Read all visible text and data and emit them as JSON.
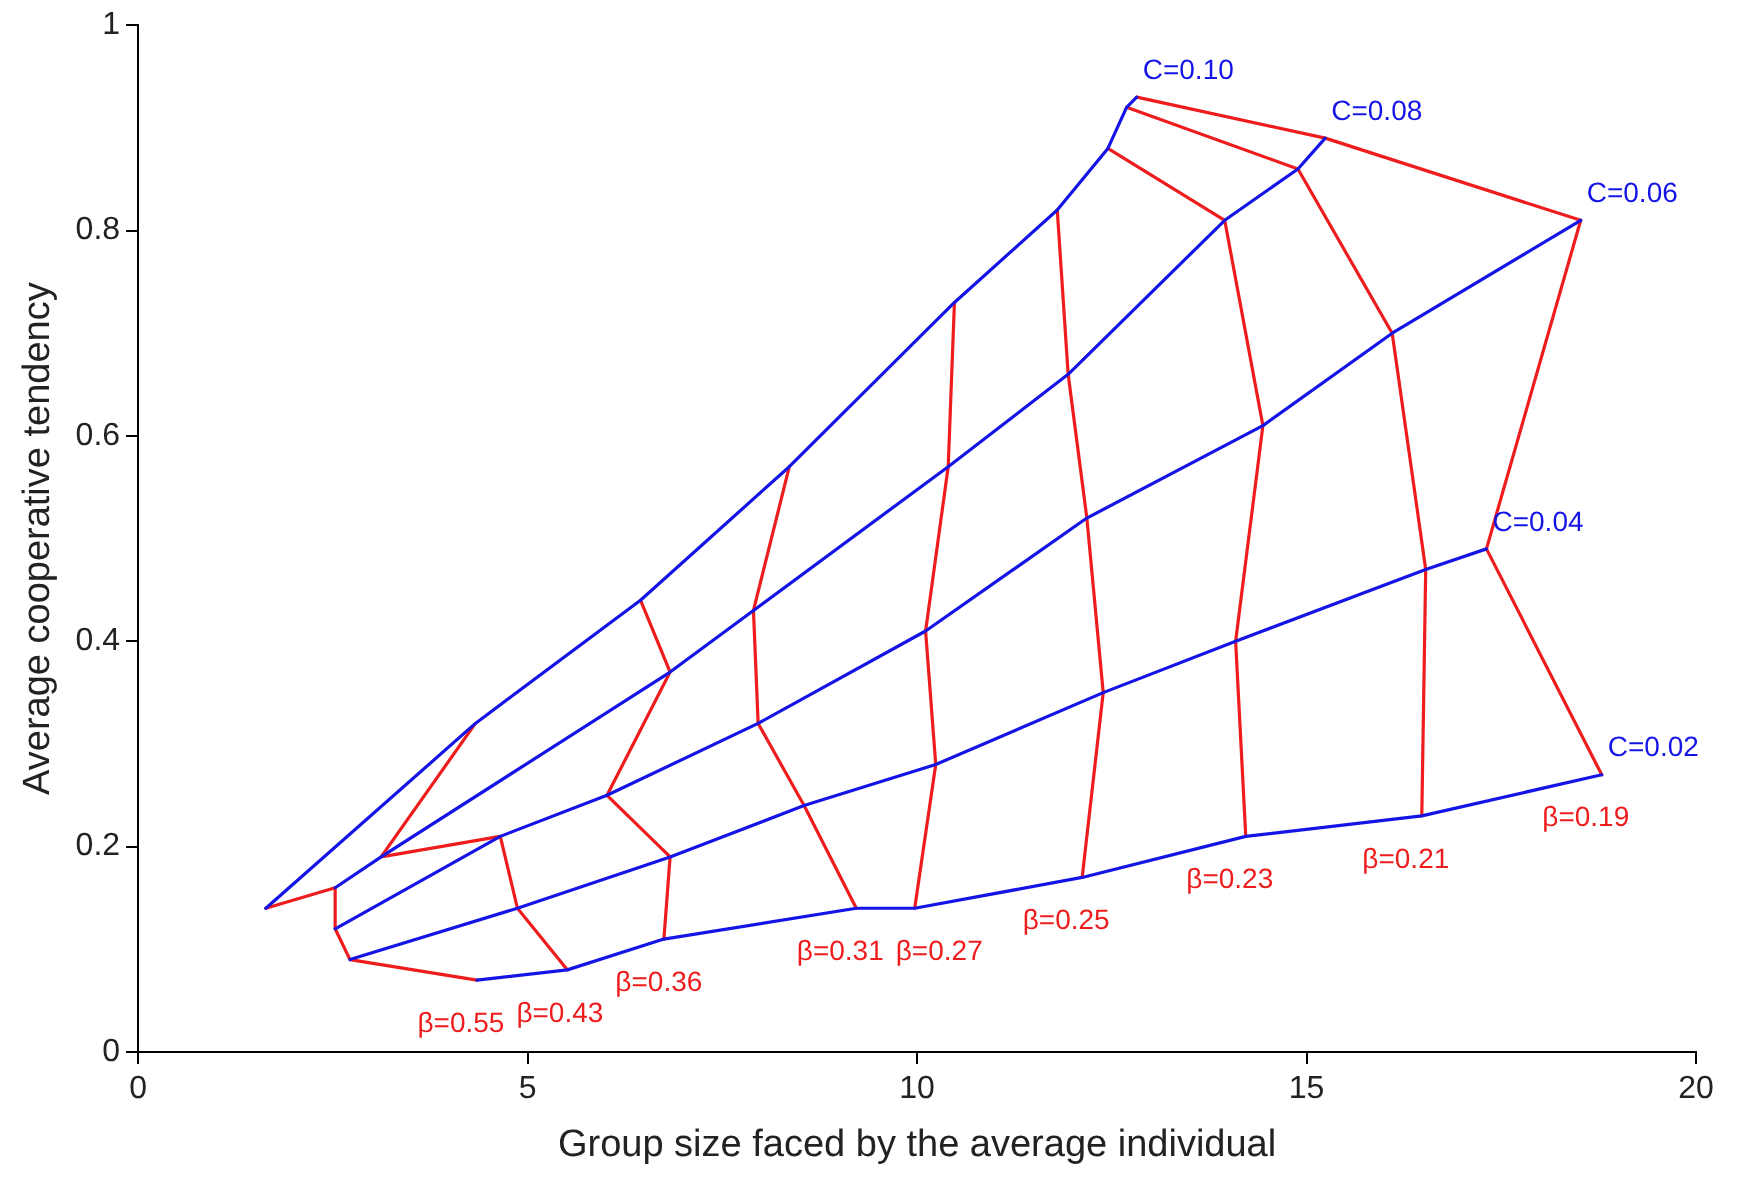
{
  "chart_data": {
    "type": "line",
    "xlabel": "Group size faced by the average individual",
    "ylabel": "Average cooperative tendency",
    "xlim": [
      0,
      20
    ],
    "ylim": [
      0,
      1
    ],
    "xticks": [
      0,
      5,
      10,
      15,
      20
    ],
    "yticks": [
      0,
      0.2,
      0.4,
      0.6,
      0.8,
      1
    ],
    "grid": false,
    "legend": false,
    "marker": "none",
    "line_style": "solid",
    "series": [
      {
        "name": "C=0.10",
        "color": "#1414e6",
        "x": [
          1.64,
          4.33,
          6.45,
          8.36,
          10.48,
          11.8,
          12.45,
          12.69,
          12.82
        ],
        "values": [
          0.14,
          0.32,
          0.44,
          0.57,
          0.73,
          0.82,
          0.88,
          0.92,
          0.93
        ]
      },
      {
        "name": "C=0.08",
        "color": "#1414e6",
        "x": [
          2.53,
          3.12,
          6.83,
          7.9,
          10.4,
          11.94,
          13.95,
          14.89,
          15.24
        ],
        "values": [
          0.16,
          0.19,
          0.37,
          0.43,
          0.57,
          0.66,
          0.81,
          0.86,
          0.89
        ]
      },
      {
        "name": "C=0.06",
        "color": "#1414e6",
        "x": [
          2.53,
          4.65,
          6.02,
          7.96,
          10.11,
          12.18,
          14.44,
          16.1,
          18.52
        ],
        "values": [
          0.12,
          0.21,
          0.25,
          0.32,
          0.41,
          0.52,
          0.61,
          0.7,
          0.81
        ]
      },
      {
        "name": "C=0.04",
        "color": "#1414e6",
        "x": [
          2.72,
          4.87,
          6.83,
          8.55,
          10.24,
          12.39,
          14.09,
          16.53,
          17.31
        ],
        "values": [
          0.09,
          0.14,
          0.19,
          0.24,
          0.28,
          0.35,
          0.4,
          0.47,
          0.49
        ]
      },
      {
        "name": "C=0.02",
        "color": "#1414e6",
        "x": [
          4.35,
          5.51,
          6.75,
          9.22,
          9.97,
          12.12,
          14.22,
          16.48,
          18.79
        ],
        "values": [
          0.07,
          0.08,
          0.11,
          0.14,
          0.14,
          0.17,
          0.21,
          0.23,
          0.27
        ]
      },
      {
        "name": "β=0.55",
        "color": "#ee1c1c",
        "x": [
          1.64,
          2.53,
          2.53,
          2.72,
          4.35
        ],
        "values": [
          0.14,
          0.16,
          0.12,
          0.09,
          0.07
        ]
      },
      {
        "name": "β=0.43",
        "color": "#ee1c1c",
        "x": [
          4.33,
          3.12,
          4.65,
          4.87,
          5.51
        ],
        "values": [
          0.32,
          0.19,
          0.21,
          0.14,
          0.08
        ]
      },
      {
        "name": "β=0.36",
        "color": "#ee1c1c",
        "x": [
          6.45,
          6.83,
          6.02,
          6.83,
          6.75
        ],
        "values": [
          0.44,
          0.37,
          0.25,
          0.19,
          0.11
        ]
      },
      {
        "name": "β=0.31",
        "color": "#ee1c1c",
        "x": [
          8.36,
          7.9,
          7.96,
          8.55,
          9.22
        ],
        "values": [
          0.57,
          0.43,
          0.32,
          0.24,
          0.14
        ]
      },
      {
        "name": "β=0.27",
        "color": "#ee1c1c",
        "x": [
          10.48,
          10.4,
          10.11,
          10.24,
          9.97
        ],
        "values": [
          0.73,
          0.57,
          0.41,
          0.28,
          0.14
        ]
      },
      {
        "name": "β=0.25",
        "color": "#ee1c1c",
        "x": [
          11.8,
          11.94,
          12.18,
          12.39,
          12.12
        ],
        "values": [
          0.82,
          0.66,
          0.52,
          0.35,
          0.17
        ]
      },
      {
        "name": "β=0.23",
        "color": "#ee1c1c",
        "x": [
          12.45,
          13.95,
          14.44,
          14.09,
          14.22
        ],
        "values": [
          0.88,
          0.81,
          0.61,
          0.4,
          0.21
        ]
      },
      {
        "name": "β=0.21",
        "color": "#ee1c1c",
        "x": [
          12.69,
          14.89,
          16.1,
          16.53,
          16.48
        ],
        "values": [
          0.92,
          0.86,
          0.7,
          0.47,
          0.23
        ]
      },
      {
        "name": "β=0.19",
        "color": "#ee1c1c",
        "x": [
          12.82,
          15.24,
          18.52,
          17.31,
          18.79
        ],
        "values": [
          0.93,
          0.89,
          0.81,
          0.49,
          0.27
        ]
      }
    ]
  }
}
